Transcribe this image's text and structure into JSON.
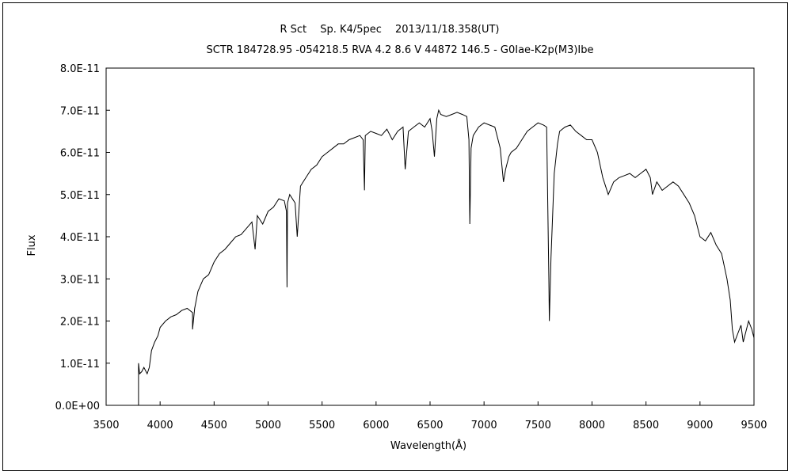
{
  "chart_data": {
    "type": "line",
    "title": "R Sct　 Sp. K4/5pec　 2013/11/18.358(UT)",
    "subtitle": "SCTR 184728.95 -054218.5 RVA 4.2 8.6 V 44872 146.5 - G0Iae-K2p(M3)Ibe",
    "xlabel": "Wavelength(Å)",
    "ylabel": "Flux",
    "xlim": [
      3500,
      9500
    ],
    "ylim": [
      0,
      8e-11
    ],
    "xticks": [
      3500,
      4000,
      4500,
      5000,
      5500,
      6000,
      6500,
      7000,
      7500,
      8000,
      8500,
      9000,
      9500
    ],
    "yticks": [
      0,
      1e-11,
      2e-11,
      3e-11,
      4e-11,
      5e-11,
      6e-11,
      7e-11,
      8e-11
    ],
    "xtick_labels": [
      "3500",
      "4000",
      "4500",
      "5000",
      "5500",
      "6000",
      "6500",
      "7000",
      "7500",
      "8000",
      "8500",
      "9000",
      "9500"
    ],
    "ytick_labels": [
      "0.0E+00",
      "1.0E-11",
      "2.0E-11",
      "3.0E-11",
      "4.0E-11",
      "5.0E-11",
      "6.0E-11",
      "7.0E-11",
      "8.0E-11"
    ],
    "grid": false,
    "line_color": "#000000",
    "series": [
      {
        "x": [
          3800,
          3800,
          3810,
          3830,
          3850,
          3880,
          3900,
          3920,
          3950,
          3980,
          4000,
          4050,
          4100,
          4150,
          4200,
          4250,
          4300,
          4300,
          4320,
          4350,
          4400,
          4450,
          4500,
          4550,
          4600,
          4650,
          4700,
          4750,
          4800,
          4850,
          4880,
          4900,
          4950,
          5000,
          5050,
          5100,
          5150,
          5170,
          5175,
          5180,
          5200,
          5250,
          5270,
          5300,
          5350,
          5400,
          5450,
          5500,
          5550,
          5600,
          5650,
          5700,
          5750,
          5800,
          5850,
          5880,
          5893,
          5900,
          5950,
          6000,
          6050,
          6100,
          6150,
          6200,
          6250,
          6270,
          6300,
          6350,
          6400,
          6450,
          6500,
          6520,
          6540,
          6562,
          6580,
          6600,
          6650,
          6700,
          6750,
          6800,
          6840,
          6860,
          6868,
          6880,
          6900,
          6950,
          7000,
          7050,
          7100,
          7150,
          7180,
          7200,
          7230,
          7250,
          7300,
          7350,
          7400,
          7450,
          7500,
          7550,
          7580,
          7600,
          7605,
          7620,
          7650,
          7680,
          7700,
          7750,
          7800,
          7850,
          7900,
          7950,
          8000,
          8050,
          8100,
          8150,
          8200,
          8250,
          8300,
          8350,
          8400,
          8450,
          8500,
          8540,
          8560,
          8600,
          8650,
          8700,
          8750,
          8800,
          8850,
          8900,
          8950,
          9000,
          9050,
          9100,
          9150,
          9200,
          9250,
          9280,
          9300,
          9320,
          9350,
          9380,
          9400,
          9450,
          9480,
          9500
        ],
        "y": [
          0,
          1e-11,
          7.5e-12,
          8e-12,
          9e-12,
          7.5e-12,
          9e-12,
          1.3e-11,
          1.5e-11,
          1.65e-11,
          1.85e-11,
          2e-11,
          2.1e-11,
          2.15e-11,
          2.25e-11,
          2.3e-11,
          2.2e-11,
          1.8e-11,
          2.3e-11,
          2.7e-11,
          3e-11,
          3.1e-11,
          3.4e-11,
          3.6e-11,
          3.7e-11,
          3.85e-11,
          4e-11,
          4.05e-11,
          4.2e-11,
          4.35e-11,
          3.7e-11,
          4.5e-11,
          4.3e-11,
          4.6e-11,
          4.7e-11,
          4.9e-11,
          4.85e-11,
          4.6e-11,
          2.8e-11,
          4.8e-11,
          5e-11,
          4.8e-11,
          4e-11,
          5.2e-11,
          5.4e-11,
          5.6e-11,
          5.7e-11,
          5.9e-11,
          6e-11,
          6.1e-11,
          6.2e-11,
          6.2e-11,
          6.3e-11,
          6.35e-11,
          6.4e-11,
          6.3e-11,
          5.1e-11,
          6.4e-11,
          6.5e-11,
          6.45e-11,
          6.4e-11,
          6.55e-11,
          6.3e-11,
          6.5e-11,
          6.6e-11,
          5.6e-11,
          6.5e-11,
          6.6e-11,
          6.7e-11,
          6.6e-11,
          6.8e-11,
          6.5e-11,
          5.9e-11,
          6.8e-11,
          7e-11,
          6.9e-11,
          6.85e-11,
          6.9e-11,
          6.95e-11,
          6.9e-11,
          6.85e-11,
          6.3e-11,
          4.3e-11,
          6.1e-11,
          6.4e-11,
          6.6e-11,
          6.7e-11,
          6.65e-11,
          6.6e-11,
          6.1e-11,
          5.3e-11,
          5.6e-11,
          5.9e-11,
          6e-11,
          6.1e-11,
          6.3e-11,
          6.5e-11,
          6.6e-11,
          6.7e-11,
          6.65e-11,
          6.6e-11,
          3e-11,
          2e-11,
          3.5e-11,
          5.5e-11,
          6.2e-11,
          6.5e-11,
          6.6e-11,
          6.65e-11,
          6.5e-11,
          6.4e-11,
          6.3e-11,
          6.3e-11,
          6e-11,
          5.4e-11,
          5e-11,
          5.3e-11,
          5.4e-11,
          5.45e-11,
          5.5e-11,
          5.4e-11,
          5.5e-11,
          5.6e-11,
          5.4e-11,
          5e-11,
          5.3e-11,
          5.1e-11,
          5.2e-11,
          5.3e-11,
          5.2e-11,
          5e-11,
          4.8e-11,
          4.5e-11,
          4e-11,
          3.9e-11,
          4.1e-11,
          3.8e-11,
          3.6e-11,
          3e-11,
          2.5e-11,
          1.8e-11,
          1.5e-11,
          1.7e-11,
          1.9e-11,
          1.5e-11,
          2e-11,
          1.8e-11,
          1.6e-11
        ]
      }
    ]
  }
}
